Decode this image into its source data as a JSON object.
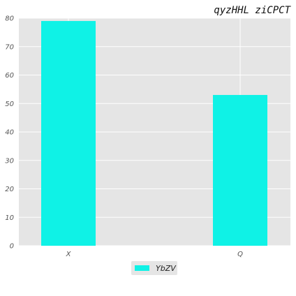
{
  "chart_data": {
    "type": "bar",
    "title": "qyzHHL ziCPCT",
    "categories": [
      "X",
      "Q"
    ],
    "series": [
      {
        "name": "YbZV",
        "values": [
          79,
          53
        ]
      }
    ],
    "ylim": [
      0,
      80
    ],
    "yticks": [
      0,
      10,
      20,
      30,
      40,
      50,
      60,
      70,
      80
    ],
    "grid": true,
    "legend": "bottom-center",
    "colors": {
      "bar": "#0ff2e6",
      "plot_background": "#e5e5e5",
      "grid": "#ffffff"
    }
  }
}
